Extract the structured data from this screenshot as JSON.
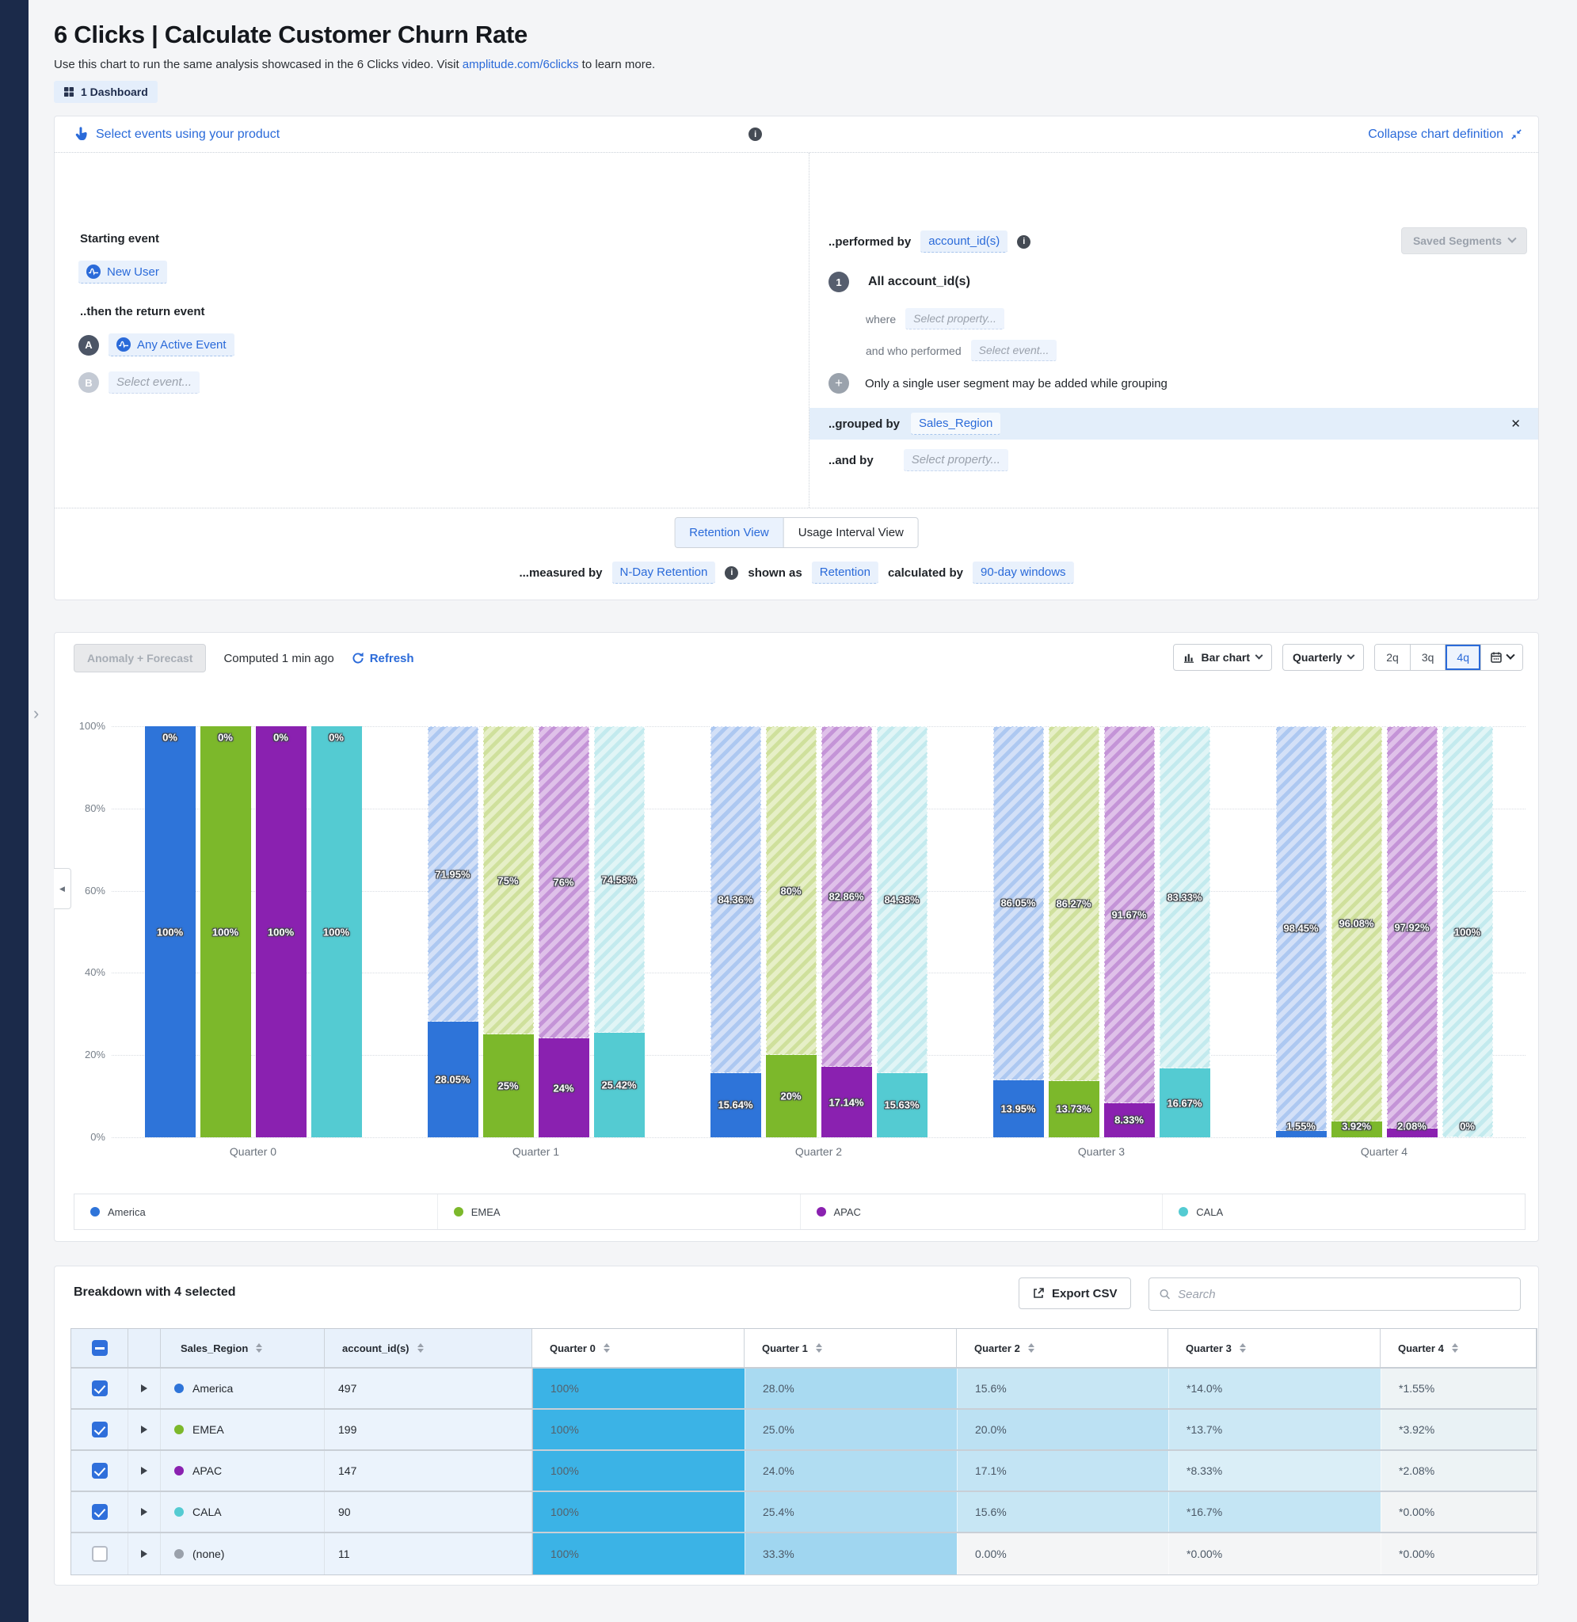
{
  "icons": {
    "info": "i",
    "close": "✕",
    "plus": "+",
    "rail_chevron": "›",
    "plot_collapse": "◀"
  },
  "header": {
    "title": "6 Clicks | Calculate Customer Churn Rate",
    "subtitle_prefix": "Use this chart to run the same analysis showcased in the 6 Clicks video. Visit ",
    "subtitle_link": "amplitude.com/6clicks",
    "subtitle_suffix": " to learn more.",
    "dashboard_badge": "1 Dashboard"
  },
  "definition": {
    "select_events_label": "Select events using your product",
    "collapse_label": "Collapse chart definition",
    "starting_event_label": "Starting event",
    "starting_event_chip": "New User",
    "return_event_label": "..then the return event",
    "event_a_badge": "A",
    "event_a_chip": "Any Active Event",
    "event_b_badge": "B",
    "event_b_placeholder": "Select event...",
    "performed_by_label": "..performed by",
    "performed_by_chip": "account_id(s)",
    "saved_segments_label": "Saved Segments",
    "segment_number": "1",
    "segment_title": "All account_id(s)",
    "where_label": "where",
    "where_placeholder": "Select property...",
    "and_who_label": "and who performed",
    "and_who_placeholder": "Select event...",
    "grouping_note": "Only a single user segment may be added while grouping",
    "grouped_by_label": "..grouped by",
    "grouped_by_chip": "Sales_Region",
    "and_by_label": "..and by",
    "and_by_placeholder": "Select property...",
    "tabs": [
      {
        "label": "Retention View",
        "active": true
      },
      {
        "label": "Usage Interval View",
        "active": false
      }
    ],
    "measured_by_label": "...measured by",
    "measured_chip": "N-Day Retention",
    "shown_as_label": "shown as",
    "shown_chip": "Retention",
    "calculated_by_label": "calculated by",
    "calculated_chip": "90-day windows"
  },
  "toolbar": {
    "anomaly_label": "Anomaly + Forecast",
    "computed_label": "Computed 1 min ago",
    "refresh_label": "Refresh",
    "chart_type_label": "Bar chart",
    "interval_label": "Quarterly",
    "range_options": [
      "2q",
      "3q",
      "4q"
    ],
    "range_selected": "4q"
  },
  "chart_data": {
    "type": "bar",
    "subtype": "stacked_retention_with_churn_hatch",
    "title": "N-Day Retention by Sales_Region, 90-day windows",
    "x_categories": [
      "Quarter 0",
      "Quarter 1",
      "Quarter 2",
      "Quarter 3",
      "Quarter 4"
    ],
    "y_ticks": [
      "100%",
      "80%",
      "60%",
      "40%",
      "20%",
      "0%"
    ],
    "ylim": [
      0,
      100
    ],
    "grid": "dotted horizontal",
    "legend_position": "bottom",
    "series": [
      {
        "name": "America",
        "color": "#2e74d9",
        "hatch_base": "#adc8f1",
        "hatch_stripe": "#d3e0f7",
        "retained_pct": [
          100,
          28.05,
          15.64,
          13.95,
          1.55
        ],
        "retained_labels": [
          "100%",
          "28.05%",
          "15.64%",
          "13.95%",
          "1.55%"
        ],
        "churned_labels": [
          "0%",
          "71.95%",
          "84.36%",
          "86.05%",
          "98.45%"
        ]
      },
      {
        "name": "EMEA",
        "color": "#7cb82b",
        "hatch_base": "#cfe09c",
        "hatch_stripe": "#e6efc7",
        "retained_pct": [
          100,
          25,
          20,
          13.73,
          3.92
        ],
        "retained_labels": [
          "100%",
          "25%",
          "20%",
          "13.73%",
          "3.92%"
        ],
        "churned_labels": [
          "0%",
          "75%",
          "80%",
          "86.27%",
          "96.08%"
        ]
      },
      {
        "name": "APAC",
        "color": "#8a21b0",
        "hatch_base": "#c494d7",
        "hatch_stripe": "#dfc1e9",
        "retained_pct": [
          100,
          24,
          17.14,
          8.33,
          2.08
        ],
        "retained_labels": [
          "100%",
          "24%",
          "17.14%",
          "8.33%",
          "2.08%"
        ],
        "churned_labels": [
          "0%",
          "76%",
          "82.86%",
          "91.67%",
          "97.92%"
        ]
      },
      {
        "name": "CALA",
        "color": "#54cbd2",
        "hatch_base": "#c3eaee",
        "hatch_stripe": "#e1f5f6",
        "retained_pct": [
          100,
          25.42,
          15.63,
          16.67,
          0
        ],
        "retained_labels": [
          "100%",
          "25.42%",
          "15.63%",
          "16.67%",
          "0%"
        ],
        "churned_labels": [
          "0%",
          "74.58%",
          "84.38%",
          "83.33%",
          "100%"
        ]
      }
    ]
  },
  "breakdown": {
    "title": "Breakdown with 4 selected",
    "export_label": "Export CSV",
    "search_placeholder": "Search",
    "columns": [
      "Sales_Region",
      "account_id(s)",
      "Quarter 0",
      "Quarter 1",
      "Quarter 2",
      "Quarter 3",
      "Quarter 4"
    ],
    "rows": [
      {
        "checked": true,
        "dot_color": "#2e74d9",
        "region": "America",
        "accounts": "497",
        "cells": [
          {
            "v": "100%",
            "bg": "#3bb3e6"
          },
          {
            "v": "28.0%",
            "bg": "#a9daf1"
          },
          {
            "v": "15.6%",
            "bg": "#c7e6f4"
          },
          {
            "v": "*14.0%",
            "bg": "#cbe8f5"
          },
          {
            "v": "*1.55%",
            "bg": "#eef3f5"
          }
        ]
      },
      {
        "checked": true,
        "dot_color": "#7cb82b",
        "region": "EMEA",
        "accounts": "199",
        "cells": [
          {
            "v": "100%",
            "bg": "#3bb3e6"
          },
          {
            "v": "25.0%",
            "bg": "#afdcf2"
          },
          {
            "v": "20.0%",
            "bg": "#bce1f3"
          },
          {
            "v": "*13.7%",
            "bg": "#cce8f5"
          },
          {
            "v": "*3.92%",
            "bg": "#e9f2f5"
          }
        ]
      },
      {
        "checked": true,
        "dot_color": "#8a21b0",
        "region": "APAC",
        "accounts": "147",
        "cells": [
          {
            "v": "100%",
            "bg": "#3bb3e6"
          },
          {
            "v": "24.0%",
            "bg": "#b1ddf2"
          },
          {
            "v": "17.1%",
            "bg": "#c3e4f4"
          },
          {
            "v": "*8.33%",
            "bg": "#daeef7"
          },
          {
            "v": "*2.08%",
            "bg": "#edf3f5"
          }
        ]
      },
      {
        "checked": true,
        "dot_color": "#54cbd2",
        "region": "CALA",
        "accounts": "90",
        "cells": [
          {
            "v": "100%",
            "bg": "#3bb3e6"
          },
          {
            "v": "25.4%",
            "bg": "#aedcf2"
          },
          {
            "v": "15.6%",
            "bg": "#c7e6f4"
          },
          {
            "v": "*16.7%",
            "bg": "#c4e5f4"
          },
          {
            "v": "*0.00%",
            "bg": "#f2f4f5"
          }
        ]
      },
      {
        "checked": false,
        "dot_color": "#9aa1ab",
        "region": "(none)",
        "accounts": "11",
        "cells": [
          {
            "v": "100%",
            "bg": "#3bb3e6"
          },
          {
            "v": "33.3%",
            "bg": "#a0d6f0"
          },
          {
            "v": "0.00%",
            "bg": "#f4f5f6"
          },
          {
            "v": "*0.00%",
            "bg": "#f4f5f6"
          },
          {
            "v": "*0.00%",
            "bg": "#f4f5f6"
          }
        ]
      }
    ]
  }
}
